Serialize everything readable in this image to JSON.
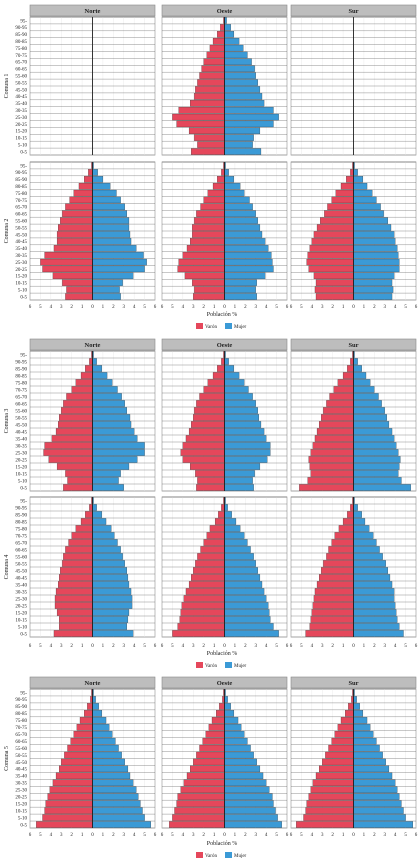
{
  "colors": {
    "varon": "#e5475b",
    "mujer": "#3b9ad6",
    "header_bg": "#bdbdbd",
    "axis_center": "#8a1a1a"
  },
  "labels": {
    "xlabel": "Población %",
    "legend_varon": "Varón",
    "legend_mujer": "Mujer",
    "regions": [
      "Norte",
      "Oeste",
      "Sur"
    ],
    "rows": [
      "Comuna 1",
      "Comuna 2",
      "Comuna 3",
      "Comuna 4",
      "Comuna 5"
    ],
    "age_groups": [
      "0-5",
      "5-10",
      "10-15",
      "15-20",
      "20-25",
      "25-30",
      "30-35",
      "35-40",
      "40-45",
      "45-50",
      "50-55",
      "55-60",
      "60-65",
      "65-70",
      "70-75",
      "75-80",
      "80-85",
      "85-90",
      "90-95",
      "95-"
    ],
    "x_ticks": [
      "6",
      "5",
      "4",
      "3",
      "2",
      "1",
      "0",
      "1",
      "2",
      "3",
      "4",
      "5",
      "6"
    ]
  },
  "chart_data": {
    "type": "bar",
    "orientation": "horizontal population pyramid",
    "xlabel": "Población %",
    "xlim": [
      -6,
      6
    ],
    "legend": "bottom-center",
    "grid": true,
    "panels": [
      {
        "row": "Comuna 1",
        "region": "Norte",
        "male": [],
        "female": []
      },
      {
        "row": "Comuna 1",
        "region": "Oeste",
        "male": [
          3.2,
          2.6,
          2.9,
          3.4,
          4.6,
          5.0,
          4.4,
          3.3,
          2.9,
          2.8,
          2.6,
          2.4,
          2.2,
          2.0,
          1.7,
          1.4,
          1.1,
          0.7,
          0.4,
          0.1
        ],
        "female": [
          3.5,
          2.7,
          2.8,
          3.4,
          4.7,
          5.2,
          4.7,
          3.8,
          3.6,
          3.4,
          3.2,
          3.0,
          2.9,
          2.6,
          2.2,
          1.8,
          1.4,
          0.9,
          0.6,
          0.2
        ]
      },
      {
        "row": "Comuna 1",
        "region": "Sur",
        "male": [],
        "female": []
      },
      {
        "row": "Comuna 2",
        "region": "Norte",
        "male": [
          2.6,
          2.5,
          2.9,
          3.8,
          4.8,
          5.0,
          4.6,
          3.7,
          3.4,
          3.4,
          3.3,
          3.1,
          2.9,
          2.6,
          2.2,
          1.8,
          1.3,
          0.8,
          0.4,
          0.1
        ],
        "female": [
          2.7,
          2.6,
          2.9,
          3.9,
          5.0,
          5.2,
          4.9,
          4.2,
          3.7,
          3.6,
          3.5,
          3.5,
          3.3,
          3.1,
          2.7,
          2.3,
          1.7,
          1.0,
          0.5,
          0.1
        ]
      },
      {
        "row": "Comuna 2",
        "region": "Oeste",
        "male": [
          3.0,
          2.9,
          3.1,
          3.8,
          4.5,
          4.4,
          4.0,
          3.6,
          3.3,
          3.1,
          3.1,
          2.9,
          2.7,
          2.3,
          2.0,
          1.6,
          1.1,
          0.7,
          0.3,
          0.1
        ],
        "female": [
          3.1,
          3.0,
          3.1,
          3.9,
          4.7,
          4.6,
          4.5,
          4.2,
          3.9,
          3.6,
          3.4,
          3.2,
          3.0,
          2.7,
          2.4,
          1.9,
          1.5,
          0.9,
          0.4,
          0.1
        ]
      },
      {
        "row": "Comuna 2",
        "region": "Sur",
        "male": [
          3.6,
          3.7,
          3.6,
          3.8,
          4.3,
          4.5,
          4.4,
          4.2,
          4.0,
          3.8,
          3.5,
          3.2,
          2.8,
          2.5,
          2.1,
          1.7,
          1.2,
          0.7,
          0.3,
          0.1
        ],
        "female": [
          3.7,
          3.8,
          3.7,
          3.9,
          4.4,
          4.4,
          4.3,
          4.2,
          4.0,
          3.9,
          3.6,
          3.3,
          2.9,
          2.6,
          2.2,
          1.8,
          1.3,
          0.9,
          0.4,
          0.1
        ]
      },
      {
        "row": "Comuna 3",
        "region": "Norte",
        "male": [
          2.8,
          2.4,
          2.6,
          3.4,
          4.2,
          4.7,
          4.6,
          3.9,
          3.5,
          3.3,
          3.2,
          3.0,
          2.8,
          2.5,
          2.0,
          1.6,
          1.1,
          0.7,
          0.3,
          0.1
        ],
        "female": [
          3.0,
          2.5,
          2.7,
          3.5,
          4.3,
          5.0,
          5.0,
          4.3,
          4.0,
          3.7,
          3.6,
          3.3,
          3.1,
          2.8,
          2.4,
          1.9,
          1.4,
          0.9,
          0.4,
          0.1
        ]
      },
      {
        "row": "Comuna 3",
        "region": "Oeste",
        "male": [
          2.7,
          2.6,
          2.8,
          3.3,
          4.0,
          4.2,
          4.0,
          3.7,
          3.4,
          3.2,
          3.0,
          2.9,
          2.7,
          2.4,
          2.0,
          1.6,
          1.1,
          0.7,
          0.3,
          0.1
        ],
        "female": [
          2.8,
          2.7,
          2.9,
          3.4,
          4.1,
          4.4,
          4.4,
          4.0,
          3.8,
          3.5,
          3.3,
          3.2,
          3.0,
          2.7,
          2.3,
          1.9,
          1.4,
          0.9,
          0.4,
          0.1
        ]
      },
      {
        "row": "Comuna 3",
        "region": "Sur",
        "male": [
          5.2,
          4.4,
          4.1,
          4.2,
          4.3,
          4.1,
          3.9,
          3.7,
          3.5,
          3.3,
          3.1,
          2.9,
          2.6,
          2.3,
          1.9,
          1.5,
          1.0,
          0.6,
          0.3,
          0.1
        ],
        "female": [
          5.5,
          4.6,
          4.3,
          4.4,
          4.5,
          4.3,
          4.1,
          3.9,
          3.7,
          3.4,
          3.2,
          3.0,
          2.7,
          2.4,
          2.0,
          1.6,
          1.2,
          0.8,
          0.4,
          0.1
        ]
      },
      {
        "row": "Comuna 4",
        "region": "Norte",
        "male": [
          3.7,
          3.2,
          3.2,
          3.4,
          3.6,
          3.6,
          3.5,
          3.3,
          3.2,
          3.1,
          2.9,
          2.8,
          2.6,
          2.3,
          2.0,
          1.6,
          1.1,
          0.7,
          0.3,
          0.1
        ],
        "female": [
          3.9,
          3.3,
          3.4,
          3.5,
          3.8,
          3.8,
          3.7,
          3.5,
          3.4,
          3.3,
          3.1,
          2.9,
          2.7,
          2.4,
          2.1,
          1.8,
          1.3,
          0.9,
          0.4,
          0.1
        ]
      },
      {
        "row": "Comuna 4",
        "region": "Oeste",
        "male": [
          5.0,
          4.5,
          4.3,
          4.2,
          4.1,
          3.9,
          3.7,
          3.4,
          3.2,
          3.0,
          2.8,
          2.6,
          2.3,
          2.0,
          1.7,
          1.4,
          0.9,
          0.6,
          0.3,
          0.1
        ],
        "female": [
          5.2,
          4.7,
          4.4,
          4.3,
          4.2,
          4.0,
          3.8,
          3.6,
          3.4,
          3.2,
          3.0,
          2.8,
          2.5,
          2.2,
          1.9,
          1.5,
          1.1,
          0.7,
          0.3,
          0.1
        ]
      },
      {
        "row": "Comuna 4",
        "region": "Sur",
        "male": [
          4.6,
          4.2,
          4.1,
          4.0,
          3.9,
          3.8,
          3.7,
          3.5,
          3.3,
          3.1,
          2.9,
          2.6,
          2.4,
          2.1,
          1.8,
          1.4,
          1.0,
          0.6,
          0.3,
          0.1
        ],
        "female": [
          4.8,
          4.4,
          4.2,
          4.1,
          4.0,
          3.9,
          3.9,
          3.7,
          3.5,
          3.3,
          3.1,
          2.8,
          2.5,
          2.2,
          1.9,
          1.5,
          1.1,
          0.8,
          0.4,
          0.1
        ]
      },
      {
        "row": "Comuna 5",
        "region": "Norte",
        "male": [
          5.4,
          4.8,
          4.6,
          4.5,
          4.3,
          4.1,
          3.8,
          3.5,
          3.2,
          3.0,
          2.7,
          2.4,
          2.1,
          1.8,
          1.5,
          1.2,
          0.8,
          0.5,
          0.2,
          0.1
        ],
        "female": [
          5.6,
          5.0,
          4.8,
          4.6,
          4.4,
          4.2,
          3.9,
          3.6,
          3.4,
          3.1,
          2.8,
          2.5,
          2.2,
          1.9,
          1.6,
          1.3,
          0.9,
          0.6,
          0.3,
          0.1
        ]
      },
      {
        "row": "Comuna 5",
        "region": "Oeste",
        "male": [
          5.3,
          5.0,
          4.8,
          4.6,
          4.5,
          4.2,
          3.9,
          3.6,
          3.3,
          3.0,
          2.7,
          2.4,
          2.1,
          1.8,
          1.5,
          1.2,
          0.8,
          0.5,
          0.2,
          0.1
        ],
        "female": [
          5.5,
          5.1,
          4.9,
          4.7,
          4.6,
          4.3,
          4.0,
          3.7,
          3.4,
          3.1,
          2.8,
          2.5,
          2.2,
          1.9,
          1.6,
          1.3,
          0.9,
          0.6,
          0.3,
          0.1
        ]
      },
      {
        "row": "Comuna 5",
        "region": "Sur",
        "male": [
          5.5,
          4.8,
          4.6,
          4.5,
          4.3,
          4.1,
          3.9,
          3.6,
          3.3,
          3.0,
          2.7,
          2.4,
          2.1,
          1.8,
          1.5,
          1.2,
          0.8,
          0.5,
          0.2,
          0.1
        ],
        "female": [
          5.7,
          5.0,
          4.8,
          4.6,
          4.4,
          4.2,
          4.0,
          3.7,
          3.4,
          3.1,
          2.8,
          2.5,
          2.2,
          1.9,
          1.6,
          1.3,
          0.9,
          0.6,
          0.3,
          0.1
        ]
      }
    ]
  }
}
